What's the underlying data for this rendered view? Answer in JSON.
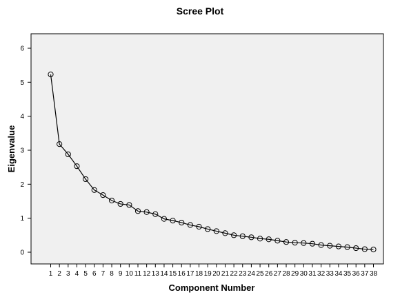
{
  "chart_data": {
    "type": "line",
    "title": "Scree Plot",
    "xlabel": "Component Number",
    "ylabel": "Eigenvalue",
    "ylim": [
      0,
      6
    ],
    "yticks": [
      0,
      1,
      2,
      3,
      4,
      5,
      6
    ],
    "x": [
      1,
      2,
      3,
      4,
      5,
      6,
      7,
      8,
      9,
      10,
      11,
      12,
      13,
      14,
      15,
      16,
      17,
      18,
      19,
      20,
      21,
      22,
      23,
      24,
      25,
      26,
      27,
      28,
      29,
      30,
      31,
      32,
      33,
      34,
      35,
      36,
      37,
      38
    ],
    "series": [
      {
        "values": [
          5.23,
          3.18,
          2.88,
          2.53,
          2.15,
          1.83,
          1.68,
          1.52,
          1.42,
          1.39,
          1.21,
          1.18,
          1.12,
          0.98,
          0.93,
          0.87,
          0.8,
          0.75,
          0.68,
          0.62,
          0.56,
          0.5,
          0.47,
          0.44,
          0.4,
          0.38,
          0.34,
          0.3,
          0.28,
          0.27,
          0.25,
          0.21,
          0.19,
          0.17,
          0.15,
          0.12,
          0.09,
          0.08
        ],
        "color": "#000000",
        "marker": "open-circle"
      }
    ],
    "plot_background": "#f0f0f0",
    "grid": false,
    "legend": "none"
  }
}
